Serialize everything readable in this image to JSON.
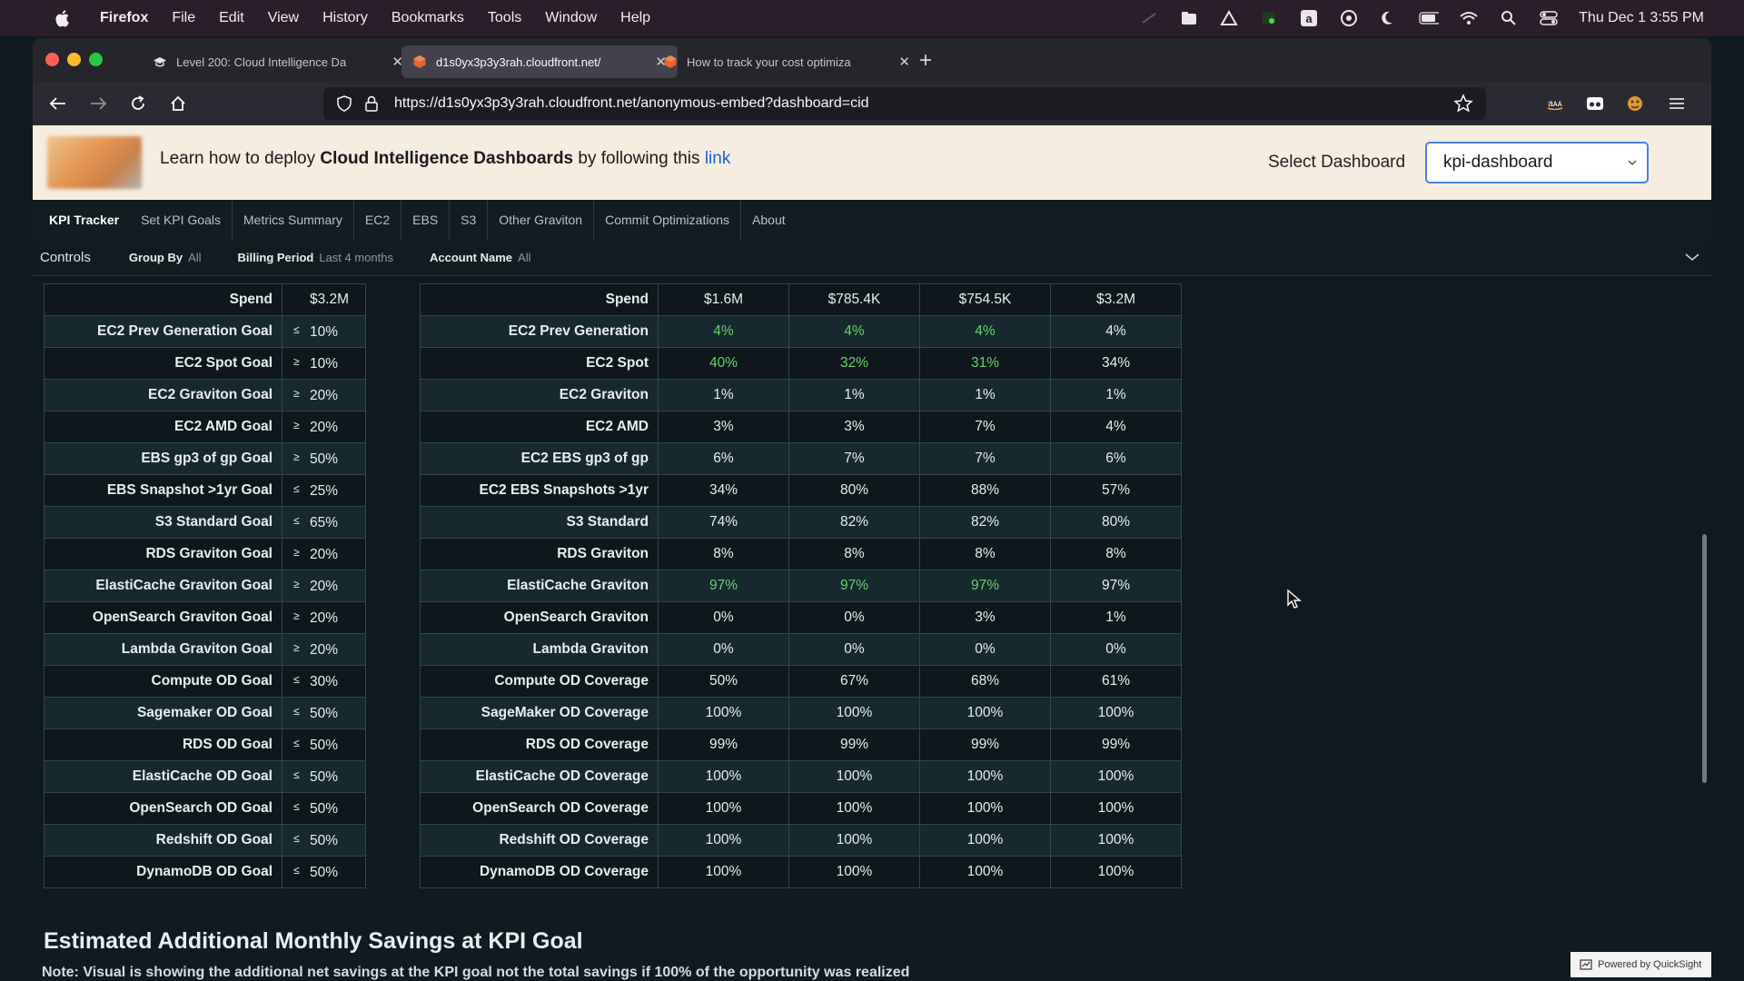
{
  "menubar": {
    "app_name": "Firefox",
    "menus": [
      "File",
      "Edit",
      "View",
      "History",
      "Bookmarks",
      "Tools",
      "Window",
      "Help"
    ],
    "clock": "Thu Dec 1  3:55 PM",
    "status_icons": [
      "toolbar-icon",
      "folder-icon",
      "drive-icon",
      "stats-icon",
      "amazon-icon",
      "vpn-icon",
      "moon-icon",
      "battery-icon",
      "wifi-icon",
      "spotlight-icon",
      "control-center-icon"
    ]
  },
  "browser": {
    "tabs": [
      {
        "title": "Level 200: Cloud Intelligence Da",
        "active": false
      },
      {
        "title": "d1s0yx3p3y3rah.cloudfront.net/",
        "active": true
      },
      {
        "title": "How to track your cost optimiza",
        "active": false
      }
    ],
    "url": "https://d1s0yx3p3y3rah.cloudfront.net/anonymous-embed?dashboard=cid"
  },
  "banner": {
    "text_before": "Learn how to deploy ",
    "text_bold": "Cloud Intelligence Dashboards",
    "text_after": " by following this ",
    "link": "link",
    "select_label": "Select Dashboard",
    "select_value": "kpi-dashboard"
  },
  "sheet_tabs": [
    "KPI Tracker",
    "Set KPI Goals",
    "Metrics Summary",
    "EC2",
    "EBS",
    "S3",
    "Other Graviton",
    "Commit Optimizations",
    "About"
  ],
  "controls": {
    "title": "Controls",
    "filters": [
      {
        "label": "Group By",
        "value": "All"
      },
      {
        "label": "Billing Period",
        "value": "Last 4 months"
      },
      {
        "label": "Account Name",
        "value": "All"
      }
    ]
  },
  "goals_table": {
    "rows": [
      {
        "label": "Spend",
        "op": "",
        "value": "$3.2M"
      },
      {
        "label": "EC2 Prev Generation Goal",
        "op": "≤",
        "value": "10%"
      },
      {
        "label": "EC2 Spot Goal",
        "op": "≥",
        "value": "10%"
      },
      {
        "label": "EC2 Graviton Goal",
        "op": "≥",
        "value": "20%"
      },
      {
        "label": "EC2 AMD Goal",
        "op": "≥",
        "value": "20%"
      },
      {
        "label": "EBS gp3 of gp Goal",
        "op": "≥",
        "value": "50%"
      },
      {
        "label": "EBS Snapshot >1yr Goal",
        "op": "≤",
        "value": "25%"
      },
      {
        "label": "S3 Standard Goal",
        "op": "≤",
        "value": "65%"
      },
      {
        "label": "RDS Graviton Goal",
        "op": "≥",
        "value": "20%"
      },
      {
        "label": "ElastiCache Graviton Goal",
        "op": "≥",
        "value": "20%"
      },
      {
        "label": "OpenSearch Graviton Goal",
        "op": "≥",
        "value": "20%"
      },
      {
        "label": "Lambda Graviton Goal",
        "op": "≥",
        "value": "20%"
      },
      {
        "label": "Compute OD Goal",
        "op": "≤",
        "value": "30%"
      },
      {
        "label": "Sagemaker OD Goal",
        "op": "≤",
        "value": "50%"
      },
      {
        "label": "RDS OD Goal",
        "op": "≤",
        "value": "50%"
      },
      {
        "label": "ElastiCache OD Goal",
        "op": "≤",
        "value": "50%"
      },
      {
        "label": "OpenSearch OD Goal",
        "op": "≤",
        "value": "50%"
      },
      {
        "label": "Redshift OD Goal",
        "op": "≤",
        "value": "50%"
      },
      {
        "label": "DynamoDB OD Goal",
        "op": "≤",
        "value": "50%"
      }
    ]
  },
  "metrics_table": {
    "green_color": "#69d36b",
    "rows": [
      {
        "label": "Spend",
        "values": [
          "$1.6M",
          "$785.4K",
          "$754.5K",
          "$3.2M"
        ],
        "green": [
          false,
          false,
          false,
          false
        ]
      },
      {
        "label": "EC2 Prev Generation",
        "values": [
          "4%",
          "4%",
          "4%",
          "4%"
        ],
        "green": [
          true,
          true,
          true,
          false
        ]
      },
      {
        "label": "EC2 Spot",
        "values": [
          "40%",
          "32%",
          "31%",
          "34%"
        ],
        "green": [
          true,
          true,
          true,
          false
        ]
      },
      {
        "label": "EC2 Graviton",
        "values": [
          "1%",
          "1%",
          "1%",
          "1%"
        ],
        "green": [
          false,
          false,
          false,
          false
        ]
      },
      {
        "label": "EC2 AMD",
        "values": [
          "3%",
          "3%",
          "7%",
          "4%"
        ],
        "green": [
          false,
          false,
          false,
          false
        ]
      },
      {
        "label": "EC2 EBS gp3 of gp",
        "values": [
          "6%",
          "7%",
          "7%",
          "6%"
        ],
        "green": [
          false,
          false,
          false,
          false
        ]
      },
      {
        "label": "EC2 EBS Snapshots >1yr",
        "values": [
          "34%",
          "80%",
          "88%",
          "57%"
        ],
        "green": [
          false,
          false,
          false,
          false
        ]
      },
      {
        "label": "S3 Standard",
        "values": [
          "74%",
          "82%",
          "82%",
          "80%"
        ],
        "green": [
          false,
          false,
          false,
          false
        ]
      },
      {
        "label": "RDS Graviton",
        "values": [
          "8%",
          "8%",
          "8%",
          "8%"
        ],
        "green": [
          false,
          false,
          false,
          false
        ]
      },
      {
        "label": "ElastiCache Graviton",
        "values": [
          "97%",
          "97%",
          "97%",
          "97%"
        ],
        "green": [
          true,
          true,
          true,
          false
        ]
      },
      {
        "label": "OpenSearch Graviton",
        "values": [
          "0%",
          "0%",
          "3%",
          "1%"
        ],
        "green": [
          false,
          false,
          false,
          false
        ]
      },
      {
        "label": "Lambda Graviton",
        "values": [
          "0%",
          "0%",
          "0%",
          "0%"
        ],
        "green": [
          false,
          false,
          false,
          false
        ]
      },
      {
        "label": "Compute OD Coverage",
        "values": [
          "50%",
          "67%",
          "68%",
          "61%"
        ],
        "green": [
          false,
          false,
          false,
          false
        ]
      },
      {
        "label": "SageMaker OD Coverage",
        "values": [
          "100%",
          "100%",
          "100%",
          "100%"
        ],
        "green": [
          false,
          false,
          false,
          false
        ]
      },
      {
        "label": "RDS OD Coverage",
        "values": [
          "99%",
          "99%",
          "99%",
          "99%"
        ],
        "green": [
          false,
          false,
          false,
          false
        ]
      },
      {
        "label": "ElastiCache OD Coverage",
        "values": [
          "100%",
          "100%",
          "100%",
          "100%"
        ],
        "green": [
          false,
          false,
          false,
          false
        ]
      },
      {
        "label": "OpenSearch OD Coverage",
        "values": [
          "100%",
          "100%",
          "100%",
          "100%"
        ],
        "green": [
          false,
          false,
          false,
          false
        ]
      },
      {
        "label": "Redshift OD Coverage",
        "values": [
          "100%",
          "100%",
          "100%",
          "100%"
        ],
        "green": [
          false,
          false,
          false,
          false
        ]
      },
      {
        "label": "DynamoDB OD Coverage",
        "values": [
          "100%",
          "100%",
          "100%",
          "100%"
        ],
        "green": [
          false,
          false,
          false,
          false
        ]
      }
    ]
  },
  "savings": {
    "title": "Estimated Additional Monthly Savings at KPI Goal",
    "note": "Note: Visual is showing the additional net savings at the KPI goal not the total savings if 100% of the opportunity was realized"
  },
  "powered_by": "Powered by QuickSight"
}
